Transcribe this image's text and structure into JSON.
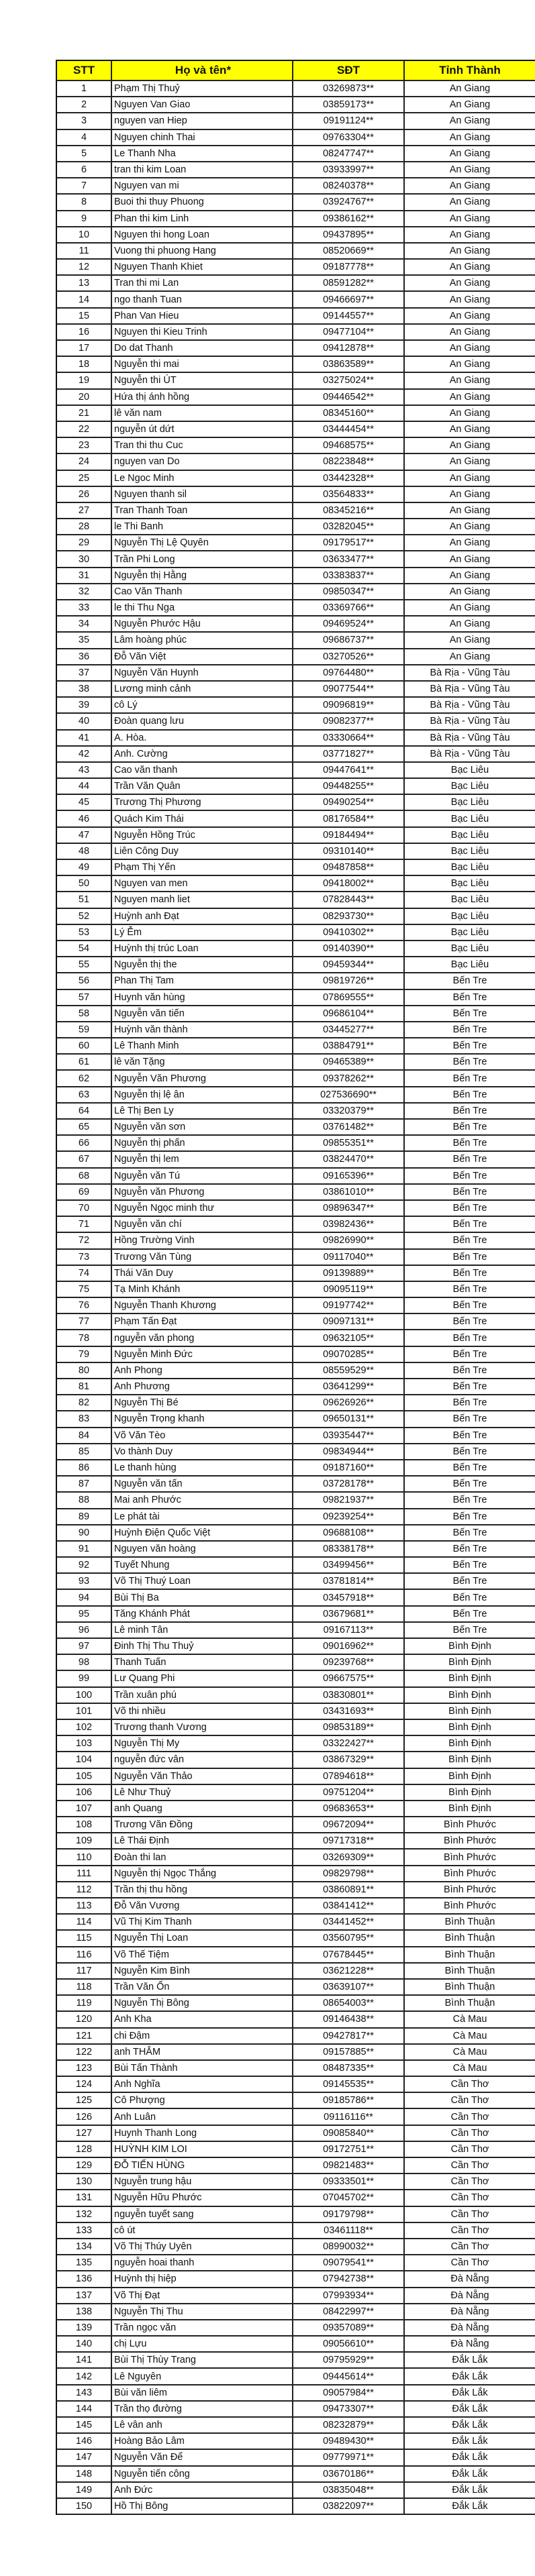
{
  "header": {
    "stt": "STT",
    "name": "Họ và tên*",
    "phone": "SĐT",
    "province": "Tỉnh Thành"
  },
  "header_color": "#ffff00",
  "rows": [
    [
      "1",
      "Phạm Thị Thuỷ",
      "03269873**",
      "An Giang"
    ],
    [
      "2",
      "Nguyen Van Giao",
      "03859173**",
      "An Giang"
    ],
    [
      "3",
      "nguyen van Hiep",
      "09191124**",
      "An Giang"
    ],
    [
      "4",
      "Nguyen chinh Thai",
      "09763304**",
      "An Giang"
    ],
    [
      "5",
      "Le Thanh Nha",
      "08247747**",
      "An Giang"
    ],
    [
      "6",
      "tran thi kim Loan",
      "03933997**",
      "An Giang"
    ],
    [
      "7",
      "Nguyen van mi",
      "08240378**",
      "An Giang"
    ],
    [
      "8",
      "Buoi thi thuy Phuong",
      "03924767**",
      "An Giang"
    ],
    [
      "9",
      "Phan thi kim Linh",
      "09386162**",
      "An Giang"
    ],
    [
      "10",
      "Nguyen thi hong Loan",
      "09437895**",
      "An Giang"
    ],
    [
      "11",
      "Vuong thi phuong Hang",
      "08520669**",
      "An Giang"
    ],
    [
      "12",
      "Nguyen Thanh Khiet",
      "09187778**",
      "An Giang"
    ],
    [
      "13",
      "Tran thi mi Lan",
      "08591282**",
      "An Giang"
    ],
    [
      "14",
      "ngo thanh Tuan",
      "09466697**",
      "An Giang"
    ],
    [
      "15",
      "Phan Van Hieu",
      "09144557**",
      "An Giang"
    ],
    [
      "16",
      "Nguyen thi Kieu Trinh",
      "09477104**",
      "An Giang"
    ],
    [
      "17",
      "Do dat Thanh",
      "09412878**",
      "An Giang"
    ],
    [
      "18",
      "Nguyễn thi mai",
      "03863589**",
      "An Giang"
    ],
    [
      "19",
      "Nguyễn thi ÚT",
      "03275024**",
      "An Giang"
    ],
    [
      "20",
      "Hứa thị ánh hồng",
      "09446542**",
      "An Giang"
    ],
    [
      "21",
      "lê văn nam",
      "08345160**",
      "An Giang"
    ],
    [
      "22",
      "nguyễn út dứt",
      "03444454**",
      "An Giang"
    ],
    [
      "23",
      "Tran thi thu Cuc",
      "09468575**",
      "An Giang"
    ],
    [
      "24",
      "nguyen van Do",
      "08223848**",
      "An Giang"
    ],
    [
      "25",
      "Le Ngoc Minh",
      "03442328**",
      "An Giang"
    ],
    [
      "26",
      "Nguyen thanh sil",
      "03564833**",
      "An Giang"
    ],
    [
      "27",
      "Tran Thanh Toan",
      "08345216**",
      "An Giang"
    ],
    [
      "28",
      "le Thi Banh",
      "03282045**",
      "An Giang"
    ],
    [
      "29",
      "Nguyễn Thị Lệ Quyên",
      "09179517**",
      "An Giang"
    ],
    [
      "30",
      "Trần Phi Long",
      "03633477**",
      "An Giang"
    ],
    [
      "31",
      "Nguyễn thị Hằng",
      "03383837**",
      "An Giang"
    ],
    [
      "32",
      "Cao Văn Thanh",
      "09850347**",
      "An Giang"
    ],
    [
      "33",
      "le thi Thu Nga",
      "03369766**",
      "An Giang"
    ],
    [
      "34",
      "Nguyễn Phước Hậu",
      "09469524**",
      "An Giang"
    ],
    [
      "35",
      "Lâm hoàng phúc",
      "09686737**",
      "An Giang"
    ],
    [
      "36",
      "Đỗ Văn Việt",
      "03270526**",
      "An Giang"
    ],
    [
      "37",
      "Nguyễn Văn Huynh",
      "09764480**",
      "Bà Rịa - Vũng Tàu"
    ],
    [
      "38",
      "Lương minh cảnh",
      "09077544**",
      "Bà Rịa - Vũng Tàu"
    ],
    [
      "39",
      "cô Lý",
      "09096819**",
      "Bà Rịa - Vũng Tàu"
    ],
    [
      "40",
      "Đoàn quang lưu",
      "09082377**",
      "Bà Rịa - Vũng Tàu"
    ],
    [
      "41",
      "A. Hòa.",
      "03330664**",
      "Bà Rịa - Vũng Tàu"
    ],
    [
      "42",
      "Anh. Cường",
      "03771827**",
      "Bà Rịa - Vũng Tàu"
    ],
    [
      "43",
      "Cao văn thanh",
      "09447641**",
      "Bạc Liêu"
    ],
    [
      "44",
      "Trần Văn Quân",
      "09448255**",
      "Bạc Liêu"
    ],
    [
      "45",
      "Trương Thị Phương",
      "09490254**",
      "Bạc Liêu"
    ],
    [
      "46",
      "Quách Kim Thái",
      "08176584**",
      "Bạc Liêu"
    ],
    [
      "47",
      "Nguyễn Hồng Trúc",
      "09184494**",
      "Bạc Liêu"
    ],
    [
      "48",
      "Liên Công Duy",
      "09310140**",
      "Bạc Liêu"
    ],
    [
      "49",
      "Phạm Thị Yến",
      "09487858**",
      "Bạc Liêu"
    ],
    [
      "50",
      "Nguyen van men",
      "09418002**",
      "Bạc Liêu"
    ],
    [
      "51",
      "Nguyen manh liet",
      "07828443**",
      "Bạc Liêu"
    ],
    [
      "52",
      "Huỳnh anh Đạt",
      "08293730**",
      "Bạc Liêu"
    ],
    [
      "53",
      "Lý Ễm",
      "09410302**",
      "Bạc Liêu"
    ],
    [
      "54",
      "Huỳnh thị trúc Loan",
      "09140390**",
      "Bạc Liêu"
    ],
    [
      "55",
      "Nguyễn thị the",
      "09459344**",
      "Bạc Liêu"
    ],
    [
      "56",
      "Phan Thị Tam",
      "09819726**",
      "Bến Tre"
    ],
    [
      "57",
      "Huynh văn hùng",
      "07869555**",
      "Bến Tre"
    ],
    [
      "58",
      "Nguyễn văn tiến",
      "09686104**",
      "Bến Tre"
    ],
    [
      "59",
      "Huỳnh văn thành",
      "03445277**",
      "Bến Tre"
    ],
    [
      "60",
      "Lê Thanh Minh",
      "03884791**",
      "Bến Tre"
    ],
    [
      "61",
      "lê văn Tặng",
      "09465389**",
      "Bến Tre"
    ],
    [
      "62",
      "Nguyễn Văn Phương",
      "09378262**",
      "Bến Tre"
    ],
    [
      "63",
      "Nguyễn thị lệ ân",
      "027536690**",
      "Bến Tre"
    ],
    [
      "64",
      "Lê Thị Ben Ly",
      "03320379**",
      "Bến Tre"
    ],
    [
      "65",
      "Nguyễn văn sơn",
      "03761482**",
      "Bến Tre"
    ],
    [
      "66",
      "Nguyễn thị phấn",
      "09855351**",
      "Bến Tre"
    ],
    [
      "67",
      "Nguyễn thị lem",
      "03824470**",
      "Bến Tre"
    ],
    [
      "68",
      "Nguyễn văn Tú",
      "09165396**",
      "Bến Tre"
    ],
    [
      "69",
      "Nguyễn văn Phương",
      "03861010**",
      "Bến Tre"
    ],
    [
      "70",
      "Nguyễn Ngọc minh thư",
      "09896347**",
      "Bến Tre"
    ],
    [
      "71",
      "Nguyễn văn chí",
      "03982436**",
      "Bến Tre"
    ],
    [
      "72",
      "Hồng Trường Vinh",
      "09826990**",
      "Bến Tre"
    ],
    [
      "73",
      "Trương Văn Tùng",
      "09117040**",
      "Bến Tre"
    ],
    [
      "74",
      "Thái Văn Duy",
      "09139889**",
      "Bến Tre"
    ],
    [
      "75",
      "Tạ Minh Khánh",
      "09095119**",
      "Bến Tre"
    ],
    [
      "76",
      "Nguyễn Thanh Khương",
      "09197742**",
      "Bến Tre"
    ],
    [
      "77",
      "Phạm Tấn Đạt",
      "09097131**",
      "Bến Tre"
    ],
    [
      "78",
      "nguyễn văn phong",
      "09632105**",
      "Bến Tre"
    ],
    [
      "79",
      "Nguyễn Minh Đức",
      "09070285**",
      "Bến Tre"
    ],
    [
      "80",
      "Anh Phong",
      "08559529**",
      "Bến Tre"
    ],
    [
      "81",
      "Anh Phương",
      "03641299**",
      "Bến Tre"
    ],
    [
      "82",
      "Nguyễn Thị Bé",
      "09626926**",
      "Bến Tre"
    ],
    [
      "83",
      "Nguyễn Trọng khanh",
      "09650131**",
      "Bến Tre"
    ],
    [
      "84",
      "Võ Văn Tèo",
      "03935447**",
      "Bến Tre"
    ],
    [
      "85",
      "Vo thành Duy",
      "09834944**",
      "Bến Tre"
    ],
    [
      "86",
      "Le thanh hùng",
      "09187160**",
      "Bến Tre"
    ],
    [
      "87",
      "Nguyễn văn tấn",
      "03728178**",
      "Bến Tre"
    ],
    [
      "88",
      "Mai anh Phước",
      "09821937**",
      "Bến Tre"
    ],
    [
      "89",
      "Le phát tài",
      "09239254**",
      "Bến Tre"
    ],
    [
      "90",
      "Huỳnh Điện Quốc Việt",
      "09688108**",
      "Bến Tre"
    ],
    [
      "91",
      "Nguyen văn hoàng",
      "08338178**",
      "Bến Tre"
    ],
    [
      "92",
      "Tuyết Nhung",
      "03499456**",
      "Bến Tre"
    ],
    [
      "93",
      "Võ Thị Thuý Loan",
      "03781814**",
      "Bến Tre"
    ],
    [
      "94",
      "Bùi Thị Ba",
      "03457918**",
      "Bến Tre"
    ],
    [
      "95",
      "Tăng Khánh Phát",
      "03679681**",
      "Bến Tre"
    ],
    [
      "96",
      "Lê minh Tân",
      "09167113**",
      "Bến Tre"
    ],
    [
      "97",
      "Đinh Thị Thu Thuỷ",
      "09016962**",
      "Bình Định"
    ],
    [
      "98",
      "Thanh Tuấn",
      "09239768**",
      "Bình Định"
    ],
    [
      "99",
      "Lư Quang Phi",
      "09667575**",
      "Bình Định"
    ],
    [
      "100",
      "Trần xuân phú",
      "03830801**",
      "Bình Định"
    ],
    [
      "101",
      "Võ thi nhiều",
      "03431693**",
      "Bình Định"
    ],
    [
      "102",
      "Trương thanh Vương",
      "09853189**",
      "Bình Định"
    ],
    [
      "103",
      "Nguyễn Thị My",
      "03322427**",
      "Bình Định"
    ],
    [
      "104",
      "nguyễn đức vân",
      "03867329**",
      "Bình Định"
    ],
    [
      "105",
      "Nguyễn Văn Thảo",
      "07894618**",
      "Bình Định"
    ],
    [
      "106",
      "Lê Như Thuỷ",
      "09751204**",
      "Bình Định"
    ],
    [
      "107",
      "anh Quang",
      "09683653**",
      "Bình Định"
    ],
    [
      "108",
      "Trương Văn Đồng",
      "09672094**",
      "Bình Phước"
    ],
    [
      "109",
      "Lê Thái Định",
      "09717318**",
      "Bình Phước"
    ],
    [
      "110",
      "Đoàn thi lan",
      "03269309**",
      "Bình Phước"
    ],
    [
      "111",
      "Nguyễn thị Ngọc Thắng",
      "09829798**",
      "Bình Phước"
    ],
    [
      "112",
      "Trần thị thu hồng",
      "03860891**",
      "Bình Phước"
    ],
    [
      "113",
      "Đỗ Văn Vương",
      "03841412**",
      "Bình Phước"
    ],
    [
      "114",
      "Vũ Thị Kim Thanh",
      "03441452**",
      "Bình Thuận"
    ],
    [
      "115",
      "Nguyễn Thị Loan",
      "03560795**",
      "Bình Thuận"
    ],
    [
      "116",
      "Võ Thế Tiệm",
      "07678445**",
      "Bình Thuận"
    ],
    [
      "117",
      "Nguyễn Kim Bình",
      "03621228**",
      "Bình Thuận"
    ],
    [
      "118",
      "Trần Văn Ổn",
      "03639107**",
      "Bình Thuận"
    ],
    [
      "119",
      "Nguyễn Thị Bông",
      "08654003**",
      "Bình Thuận"
    ],
    [
      "120",
      "Anh Kha",
      "09146438**",
      "Cà Mau"
    ],
    [
      "121",
      "chi Đậm",
      "09427817**",
      "Cà Mau"
    ],
    [
      "122",
      "anh THẮM",
      "09157885**",
      "Cà Mau"
    ],
    [
      "123",
      "Bùi Tấn Thành",
      "08487335**",
      "Cà Mau"
    ],
    [
      "124",
      "Anh Nghĩa",
      "09145535**",
      "Cần Thơ"
    ],
    [
      "125",
      "Cô Phượng",
      "09185786**",
      "Cần Thơ"
    ],
    [
      "126",
      "Anh Luân",
      "09116116**",
      "Cần Thơ"
    ],
    [
      "127",
      "Huynh Thanh Long",
      "09085840**",
      "Cần Thơ"
    ],
    [
      "128",
      "HUỲNH KIM LOI",
      "09172751**",
      "Cần Thơ"
    ],
    [
      "129",
      "ĐỖ TIẾN HÙNG",
      "09821483**",
      "Cần Thơ"
    ],
    [
      "130",
      "Nguyễn trung hậu",
      "09333501**",
      "Cần Thơ"
    ],
    [
      "131",
      "Nguyễn Hữu Phước",
      "07045702**",
      "Cần Thơ"
    ],
    [
      "132",
      "nguyễn tuyết sang",
      "09179798**",
      "Cần Thơ"
    ],
    [
      "133",
      "cô út",
      "03461118**",
      "Cần Thơ"
    ],
    [
      "134",
      "Võ Thị Thúy Uyên",
      "08990032**",
      "Cần Thơ"
    ],
    [
      "135",
      "nguyễn hoai thanh",
      "09079541**",
      "Cần Thơ"
    ],
    [
      "136",
      "Huỳnh thị hiệp",
      "07942738**",
      "Đà Nẵng"
    ],
    [
      "137",
      "Võ Thị Đạt",
      "07993934**",
      "Đà Nẵng"
    ],
    [
      "138",
      "Nguyễn Thị Thu",
      "08422997**",
      "Đà Nẵng"
    ],
    [
      "139",
      "Trần ngọc văn",
      "09357089**",
      "Đà Nẵng"
    ],
    [
      "140",
      "chị Lựu",
      "09056610**",
      "Đà Nẵng"
    ],
    [
      "141",
      "Bùi Thị Thùy Trang",
      "09795929**",
      "Đắk Lắk"
    ],
    [
      "142",
      "Lê Nguyên",
      "09445614**",
      "Đắk Lắk"
    ],
    [
      "143",
      "Bùi văn liêm",
      "09057984**",
      "Đắk Lắk"
    ],
    [
      "144",
      "Trần thọ đường",
      "09473307**",
      "Đắk Lắk"
    ],
    [
      "145",
      "Lê vân anh",
      "08232879**",
      "Đắk Lắk"
    ],
    [
      "146",
      "Hoàng Bảo Lâm",
      "09489430**",
      "Đắk Lắk"
    ],
    [
      "147",
      "Nguyễn Văn Để",
      "09779971**",
      "Đắk Lắk"
    ],
    [
      "148",
      "Nguyễn tiến công",
      "03670186**",
      "Đắk Lắk"
    ],
    [
      "149",
      "Anh Đức",
      "03835048**",
      "Đắk Lắk"
    ],
    [
      "150",
      "Hồ Thị Bông",
      "03822097**",
      "Đắk Lắk"
    ]
  ]
}
